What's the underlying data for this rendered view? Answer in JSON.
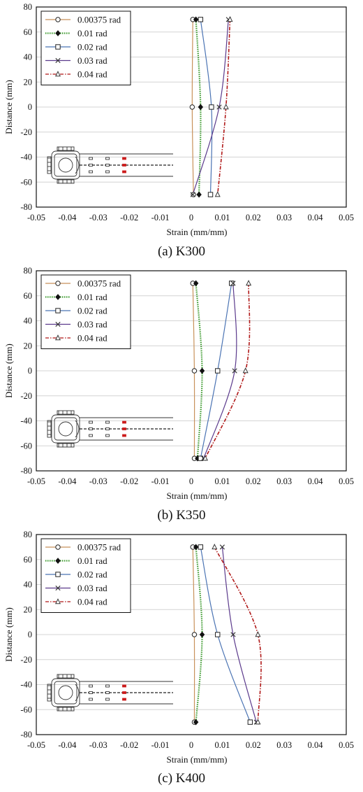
{
  "chart_data": [
    {
      "type": "line",
      "caption": "(a) K300",
      "xlabel": "Strain (mm/mm)",
      "ylabel": "Distance (mm)",
      "xlim": [
        -0.05,
        0.05
      ],
      "ylim": [
        -80,
        80
      ],
      "xticks": [
        "-0.05",
        "-0.04",
        "-0.03",
        "-0.02",
        "-0.01",
        "0",
        "0.01",
        "0.02",
        "0.03",
        "0.04",
        "0.05"
      ],
      "yticks": [
        "-80",
        "-60",
        "-40",
        "-20",
        "0",
        "20",
        "40",
        "60",
        "80"
      ],
      "grid": "horizontal",
      "legend_position": "top-left",
      "y": [
        70,
        0,
        -70
      ],
      "series": [
        {
          "name": "0.00375 rad",
          "marker": "circle",
          "color": "#c8915a",
          "dash": "solid",
          "values": [
            0.0005,
            0.0003,
            0.0007
          ]
        },
        {
          "name": "0.01 rad",
          "marker": "diamond",
          "color": "#3c9a2e",
          "dash": "dotted",
          "values": [
            0.0015,
            0.003,
            0.0025
          ]
        },
        {
          "name": "0.02 rad",
          "marker": "square",
          "color": "#4a73b3",
          "dash": "solid",
          "values": [
            0.003,
            0.0065,
            0.0062
          ]
        },
        {
          "name": "0.03 rad",
          "marker": "x",
          "color": "#5b3a8c",
          "dash": "solid",
          "values": [
            0.012,
            0.009,
            0.0005
          ]
        },
        {
          "name": "0.04 rad",
          "marker": "triangle",
          "color": "#b01818",
          "dash": "dashdot",
          "values": [
            0.0125,
            0.0112,
            0.0085
          ]
        }
      ]
    },
    {
      "type": "line",
      "caption": "(b) K350",
      "xlabel": "Strain (mm/mm)",
      "ylabel": "Distance (mm)",
      "xlim": [
        -0.05,
        0.05
      ],
      "ylim": [
        -80,
        80
      ],
      "xticks": [
        "-0.05",
        "-0.04",
        "-0.03",
        "-0.02",
        "-0.01",
        "0",
        "0.01",
        "0.02",
        "0.03",
        "0.04",
        "0.05"
      ],
      "yticks": [
        "-80",
        "-60",
        "-40",
        "-20",
        "0",
        "20",
        "40",
        "60",
        "80"
      ],
      "grid": "horizontal",
      "legend_position": "top-left",
      "y": [
        70,
        0,
        -70
      ],
      "series": [
        {
          "name": "0.00375 rad",
          "marker": "circle",
          "color": "#c8915a",
          "dash": "solid",
          "values": [
            0.0005,
            0.001,
            0.001
          ]
        },
        {
          "name": "0.01 rad",
          "marker": "diamond",
          "color": "#3c9a2e",
          "dash": "dotted",
          "values": [
            0.0015,
            0.0035,
            0.002
          ]
        },
        {
          "name": "0.02 rad",
          "marker": "square",
          "color": "#4a73b3",
          "dash": "solid",
          "values": [
            0.013,
            0.0085,
            0.003
          ]
        },
        {
          "name": "0.03 rad",
          "marker": "x",
          "color": "#5b3a8c",
          "dash": "solid",
          "values": [
            0.0135,
            0.014,
            0.004
          ]
        },
        {
          "name": "0.04 rad",
          "marker": "triangle",
          "color": "#b01818",
          "dash": "dashdot",
          "values": [
            0.0185,
            0.0175,
            0.0045
          ]
        }
      ]
    },
    {
      "type": "line",
      "caption": "(c) K400",
      "xlabel": "Strain (mm/mm)",
      "ylabel": "Distance (mm)",
      "xlim": [
        -0.05,
        0.05
      ],
      "ylim": [
        -80,
        80
      ],
      "xticks": [
        "-0.05",
        "-0.04",
        "-0.03",
        "-0.02",
        "-0.01",
        "0",
        "0.01",
        "0.02",
        "0.03",
        "0.04",
        "0.05"
      ],
      "yticks": [
        "-80",
        "-60",
        "-40",
        "-20",
        "0",
        "20",
        "40",
        "60",
        "80"
      ],
      "grid": "horizontal",
      "legend_position": "top-left",
      "y": [
        70,
        0,
        -70
      ],
      "series": [
        {
          "name": "0.00375 rad",
          "marker": "circle",
          "color": "#c8915a",
          "dash": "solid",
          "values": [
            0.0005,
            0.001,
            0.001
          ]
        },
        {
          "name": "0.01 rad",
          "marker": "diamond",
          "color": "#3c9a2e",
          "dash": "dotted",
          "values": [
            0.0015,
            0.0035,
            0.0015
          ]
        },
        {
          "name": "0.02 rad",
          "marker": "square",
          "color": "#4a73b3",
          "dash": "solid",
          "values": [
            0.003,
            0.0085,
            0.019
          ]
        },
        {
          "name": "0.03 rad",
          "marker": "x",
          "color": "#5b3a8c",
          "dash": "solid",
          "values": [
            0.01,
            0.0135,
            0.021
          ]
        },
        {
          "name": "0.04 rad",
          "marker": "triangle",
          "color": "#b01818",
          "dash": "dashdot",
          "values": [
            0.0075,
            0.0215,
            0.0215
          ]
        }
      ]
    }
  ]
}
